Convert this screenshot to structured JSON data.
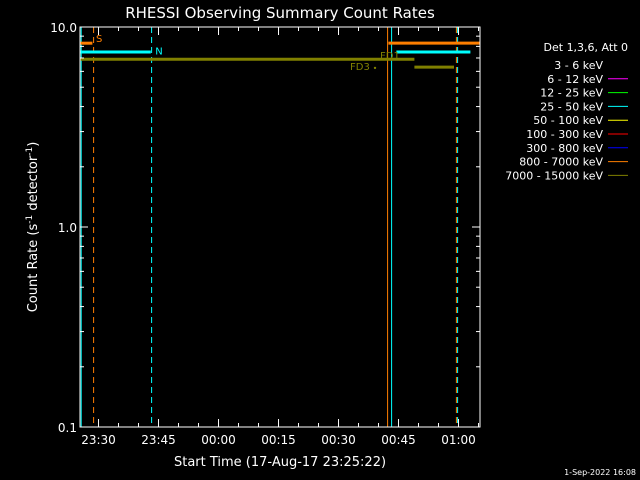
{
  "chart_data": {
    "type": "line",
    "title": "RHESSI Observing Summary Count Rates",
    "xlabel": "Start Time (17-Aug-17 23:25:22)",
    "ylabel_main": "Count Rate (s",
    "ylabel_sup1": "-1",
    "ylabel_mid": " detector",
    "ylabel_sup2": "-1",
    "ylabel_end": ")",
    "x_unit": "minutes from 23:25:22",
    "xlim": [
      0,
      38.7
    ],
    "ylim": [
      0.1,
      10.0
    ],
    "y_scale": "log",
    "x_ticks": [
      {
        "t": 4.63,
        "label": "23:30"
      },
      {
        "t": 19.63,
        "label": "23:45"
      },
      {
        "t": 34.63,
        "label": "00:00"
      },
      {
        "t": 49.63,
        "label": "00:15"
      },
      {
        "t": 64.63,
        "label": "00:30"
      },
      {
        "t": 79.63,
        "label": "00:45"
      },
      {
        "t": 94.63,
        "label": "01:00"
      }
    ],
    "y_ticks": [
      {
        "v": 0.1,
        "label": "0.1"
      },
      {
        "v": 1.0,
        "label": "1.0"
      },
      {
        "v": 10.0,
        "label": "10.0"
      }
    ],
    "legend": {
      "header": "Det 1,3,6, Att 0",
      "placement": "right",
      "entries": [
        {
          "label": "3 - 6 keV",
          "color": "#000000"
        },
        {
          "label": "6 - 12 keV",
          "color": "#ff00ff"
        },
        {
          "label": "12 - 25 keV",
          "color": "#00ff00"
        },
        {
          "label": "25 - 50 keV",
          "color": "#00ffff"
        },
        {
          "label": "50 - 100 keV",
          "color": "#ffff00"
        },
        {
          "label": "100 - 300 keV",
          "color": "#ff0000"
        },
        {
          "label": "300 - 800 keV",
          "color": "#0000ff"
        },
        {
          "label": "800 - 7000 keV",
          "color": "#ff7f00"
        },
        {
          "label": "7000 - 15000 keV",
          "color": "#808000"
        }
      ]
    },
    "series": [
      {
        "name": "800 - 7000 keV",
        "color": "#ff7f00",
        "segments": [
          [
            0,
            3.1,
            8.3
          ],
          [
            77.1,
            102.8,
            8.3
          ]
        ]
      },
      {
        "name": "25 - 50 keV",
        "color": "#00ffff",
        "segments": [
          [
            0,
            17.7,
            7.5
          ],
          [
            79.1,
            97.6,
            7.5
          ]
        ]
      },
      {
        "name": "7000 - 15000 keV",
        "color": "#808000",
        "segments": [
          [
            0,
            83.6,
            6.9
          ],
          [
            83.6,
            93.5,
            6.3
          ]
        ]
      }
    ],
    "vlines": [
      {
        "t": 0.3,
        "style": "solid",
        "color": "#00ffff"
      },
      {
        "t": 3.4,
        "style": "dashed",
        "color": "#ff7f00"
      },
      {
        "t": 17.9,
        "style": "dashed",
        "color": "#00ffff"
      },
      {
        "t": 76.9,
        "style": "solid",
        "color": "#ff7f00"
      },
      {
        "t": 77.9,
        "style": "solid",
        "color": "#00ffff"
      },
      {
        "t": 94.1,
        "style": "dashed",
        "color": "#ff7f00"
      },
      {
        "t": 94.4,
        "style": "dashed",
        "color": "#00ffff"
      }
    ],
    "annotations": [
      {
        "text": "S",
        "t": 4.0,
        "v": 8.4,
        "color": "#ff7f00"
      },
      {
        "text": "N",
        "t": 18.8,
        "v": 7.3,
        "color": "#00ffff"
      },
      {
        "text": "FD1",
        "t": 75.0,
        "v": 6.9,
        "color": "#808000"
      },
      {
        "text": "FD3",
        "t": 67.5,
        "v": 6.1,
        "color": "#808000"
      }
    ]
  },
  "footer": {
    "date": "1-Sep-2022 16:08"
  }
}
